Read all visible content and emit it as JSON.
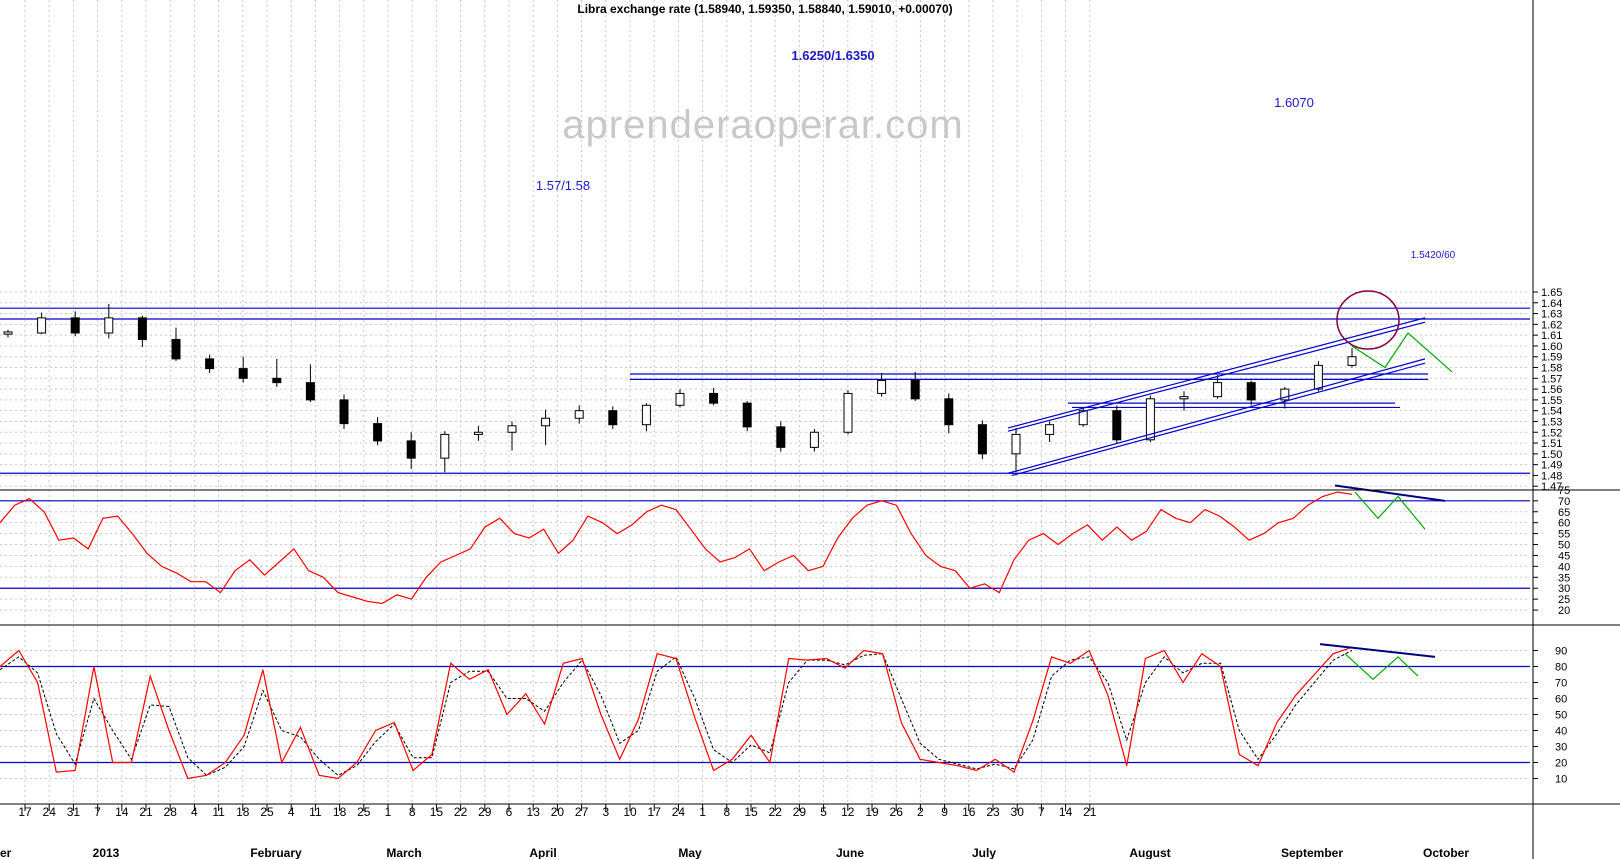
{
  "title": "Libra exchange rate (1.58940, 1.59350, 1.58840, 1.59010, +0.00070)",
  "watermark": "aprenderaoperar.com",
  "colors": {
    "level": "#0000cc",
    "rsi": "#ff0000",
    "stoch_signal": "#000000",
    "projection": "#00aa00",
    "divergence": "#000080",
    "circle": "#800040"
  },
  "chart_data": [
    {
      "type": "candlestick",
      "title": "Libra exchange rate (1.58940, 1.59350, 1.58840, 1.59010, +0.00070)",
      "ylim": [
        1.46,
        1.655
      ],
      "yticks": [
        1.47,
        1.48,
        1.49,
        1.5,
        1.51,
        1.52,
        1.53,
        1.54,
        1.55,
        1.56,
        1.57,
        1.58,
        1.59,
        1.6,
        1.61,
        1.62,
        1.63,
        1.64,
        1.65
      ],
      "ohlc": [
        {
          "period": "Dec 10",
          "open": 1.611,
          "high": 1.615,
          "low": 1.608,
          "close": 1.613
        },
        {
          "period": "Dec 17",
          "open": 1.612,
          "high": 1.631,
          "low": 1.611,
          "close": 1.626
        },
        {
          "period": "Dec 24",
          "open": 1.626,
          "high": 1.632,
          "low": 1.609,
          "close": 1.612
        },
        {
          "period": "Dec 31",
          "open": 1.612,
          "high": 1.639,
          "low": 1.607,
          "close": 1.626
        },
        {
          "period": "Jan 7",
          "open": 1.626,
          "high": 1.628,
          "low": 1.599,
          "close": 1.606
        },
        {
          "period": "Jan 14",
          "open": 1.606,
          "high": 1.617,
          "low": 1.586,
          "close": 1.588
        },
        {
          "period": "Jan 21",
          "open": 1.588,
          "high": 1.592,
          "low": 1.575,
          "close": 1.579
        },
        {
          "period": "Jan 28",
          "open": 1.579,
          "high": 1.59,
          "low": 1.566,
          "close": 1.57
        },
        {
          "period": "Feb 4",
          "open": 1.57,
          "high": 1.588,
          "low": 1.562,
          "close": 1.566
        },
        {
          "period": "Feb 11",
          "open": 1.566,
          "high": 1.583,
          "low": 1.548,
          "close": 1.55
        },
        {
          "period": "Feb 18",
          "open": 1.55,
          "high": 1.555,
          "low": 1.523,
          "close": 1.528
        },
        {
          "period": "Feb 25",
          "open": 1.528,
          "high": 1.534,
          "low": 1.508,
          "close": 1.512
        },
        {
          "period": "Mar 4",
          "open": 1.512,
          "high": 1.52,
          "low": 1.486,
          "close": 1.496
        },
        {
          "period": "Mar 11",
          "open": 1.496,
          "high": 1.521,
          "low": 1.483,
          "close": 1.518
        },
        {
          "period": "Mar 18",
          "open": 1.518,
          "high": 1.526,
          "low": 1.512,
          "close": 1.52
        },
        {
          "period": "Mar 25",
          "open": 1.52,
          "high": 1.53,
          "low": 1.503,
          "close": 1.526
        },
        {
          "period": "Apr 1",
          "open": 1.526,
          "high": 1.541,
          "low": 1.508,
          "close": 1.533
        },
        {
          "period": "Apr 8",
          "open": 1.533,
          "high": 1.545,
          "low": 1.528,
          "close": 1.54
        },
        {
          "period": "Apr 15",
          "open": 1.54,
          "high": 1.544,
          "low": 1.523,
          "close": 1.527
        },
        {
          "period": "Apr 22",
          "open": 1.527,
          "high": 1.547,
          "low": 1.521,
          "close": 1.545
        },
        {
          "period": "Apr 29",
          "open": 1.545,
          "high": 1.56,
          "low": 1.543,
          "close": 1.556
        },
        {
          "period": "May 6",
          "open": 1.556,
          "high": 1.561,
          "low": 1.545,
          "close": 1.547
        },
        {
          "period": "May 13",
          "open": 1.547,
          "high": 1.549,
          "low": 1.521,
          "close": 1.525
        },
        {
          "period": "May 20",
          "open": 1.525,
          "high": 1.53,
          "low": 1.502,
          "close": 1.506
        },
        {
          "period": "May 27",
          "open": 1.506,
          "high": 1.523,
          "low": 1.502,
          "close": 1.52
        },
        {
          "period": "Jun 3",
          "open": 1.52,
          "high": 1.559,
          "low": 1.518,
          "close": 1.556
        },
        {
          "period": "Jun 10",
          "open": 1.556,
          "high": 1.575,
          "low": 1.553,
          "close": 1.568
        },
        {
          "period": "Jun 17",
          "open": 1.568,
          "high": 1.576,
          "low": 1.549,
          "close": 1.551
        },
        {
          "period": "Jun 24",
          "open": 1.551,
          "high": 1.556,
          "low": 1.519,
          "close": 1.527
        },
        {
          "period": "Jul 1",
          "open": 1.527,
          "high": 1.531,
          "low": 1.495,
          "close": 1.5
        },
        {
          "period": "Jul 8",
          "open": 1.5,
          "high": 1.524,
          "low": 1.483,
          "close": 1.518
        },
        {
          "period": "Jul 15",
          "open": 1.518,
          "high": 1.53,
          "low": 1.511,
          "close": 1.527
        },
        {
          "period": "Jul 22",
          "open": 1.527,
          "high": 1.543,
          "low": 1.525,
          "close": 1.54
        },
        {
          "period": "Jul 29",
          "open": 1.54,
          "high": 1.545,
          "low": 1.509,
          "close": 1.513
        },
        {
          "period": "Aug 5",
          "open": 1.513,
          "high": 1.554,
          "low": 1.511,
          "close": 1.551
        },
        {
          "period": "Aug 12",
          "open": 1.551,
          "high": 1.558,
          "low": 1.54,
          "close": 1.553
        },
        {
          "period": "Aug 19",
          "open": 1.553,
          "high": 1.573,
          "low": 1.551,
          "close": 1.566
        },
        {
          "period": "Aug 26",
          "open": 1.566,
          "high": 1.568,
          "low": 1.545,
          "close": 1.55
        },
        {
          "period": "Sep 2",
          "open": 1.55,
          "high": 1.562,
          "low": 1.542,
          "close": 1.56
        },
        {
          "period": "Sep 9",
          "open": 1.56,
          "high": 1.586,
          "low": 1.558,
          "close": 1.582
        },
        {
          "period": "Sep 16",
          "open": 1.582,
          "high": 1.598,
          "low": 1.58,
          "close": 1.59
        }
      ],
      "levels": [
        1.635,
        1.625,
        1.574,
        1.569,
        1.547,
        1.543,
        1.482
      ],
      "annotations": [
        "1.6250/1.6350",
        "1.6070",
        "1.57/1.58",
        "1.5420/60"
      ]
    },
    {
      "type": "line",
      "ylim": [
        15,
        80
      ],
      "yticks": [
        20,
        25,
        30,
        35,
        40,
        45,
        50,
        55,
        60,
        65,
        70,
        75
      ],
      "levels": [
        70,
        30
      ],
      "x_range": [
        "Dec 10",
        "Sep 19"
      ],
      "series": [
        {
          "values": [
            60,
            68,
            71,
            65,
            52,
            53,
            48,
            62,
            63,
            55,
            46,
            40,
            37,
            33,
            33,
            28,
            38,
            43,
            36,
            42,
            48,
            38,
            35,
            28,
            26,
            24,
            23,
            27,
            25,
            35,
            42,
            45,
            48,
            58,
            62,
            55,
            53,
            57,
            46,
            52,
            63,
            60,
            55,
            59,
            65,
            68,
            66,
            57,
            48,
            42,
            44,
            48,
            38,
            42,
            45,
            38,
            40,
            53,
            62,
            68,
            70,
            68,
            55,
            45,
            40,
            38,
            30,
            32,
            28,
            43,
            52,
            55,
            50,
            55,
            59,
            52,
            58,
            52,
            56,
            66,
            62,
            60,
            66,
            63,
            58,
            52,
            55,
            60,
            62,
            68,
            72,
            74,
            73
          ]
        }
      ]
    },
    {
      "type": "line",
      "ylim": [
        0,
        98
      ],
      "yticks": [
        10,
        20,
        30,
        40,
        50,
        60,
        70,
        80,
        90
      ],
      "levels": [
        80,
        20
      ],
      "x_range": [
        "Dec 10",
        "Sep 19"
      ],
      "series": [
        {
          "values": [
            80,
            90,
            70,
            14,
            15,
            80,
            20,
            20,
            74,
            40,
            10,
            12,
            20,
            37,
            78,
            20,
            42,
            12,
            10,
            20,
            40,
            45,
            15,
            25,
            82,
            72,
            78,
            50,
            63,
            44,
            82,
            85,
            50,
            22,
            47,
            88,
            85,
            48,
            15,
            22,
            37,
            20,
            85,
            84,
            85,
            79,
            90,
            88,
            45,
            22,
            20,
            18,
            15,
            22,
            14,
            46,
            86,
            82,
            90,
            62,
            18,
            85,
            90,
            70,
            88,
            80,
            25,
            18,
            45,
            62,
            75,
            88,
            92
          ]
        },
        {
          "values": [
            78,
            86,
            76,
            38,
            19,
            60,
            40,
            22,
            56,
            55,
            23,
            12,
            17,
            30,
            65,
            40,
            36,
            22,
            12,
            18,
            33,
            44,
            23,
            23,
            70,
            77,
            77,
            60,
            60,
            52,
            70,
            84,
            62,
            32,
            40,
            77,
            86,
            60,
            28,
            20,
            31,
            26,
            70,
            84,
            84,
            81,
            87,
            88,
            60,
            32,
            22,
            19,
            16,
            19,
            16,
            34,
            74,
            84,
            86,
            70,
            34,
            70,
            86,
            76,
            82,
            82,
            40,
            22,
            38,
            56,
            70,
            84,
            90
          ]
        }
      ]
    }
  ],
  "x_axis": {
    "day_labels": [
      "17",
      "24",
      "31",
      "7",
      "14",
      "21",
      "28",
      "4",
      "11",
      "18",
      "25",
      "4",
      "11",
      "18",
      "25",
      "1",
      "8",
      "15",
      "22",
      "29",
      "6",
      "13",
      "20",
      "27",
      "3",
      "10",
      "17",
      "24",
      "1",
      "8",
      "15",
      "22",
      "29",
      "5",
      "12",
      "19",
      "26",
      "2",
      "9",
      "16",
      "23",
      "30",
      "7",
      "14",
      "21"
    ],
    "month_labels": [
      "2013",
      "February",
      "March",
      "April",
      "May",
      "June",
      "July",
      "August",
      "September",
      "October"
    ],
    "edge_labels": [
      "er"
    ]
  }
}
